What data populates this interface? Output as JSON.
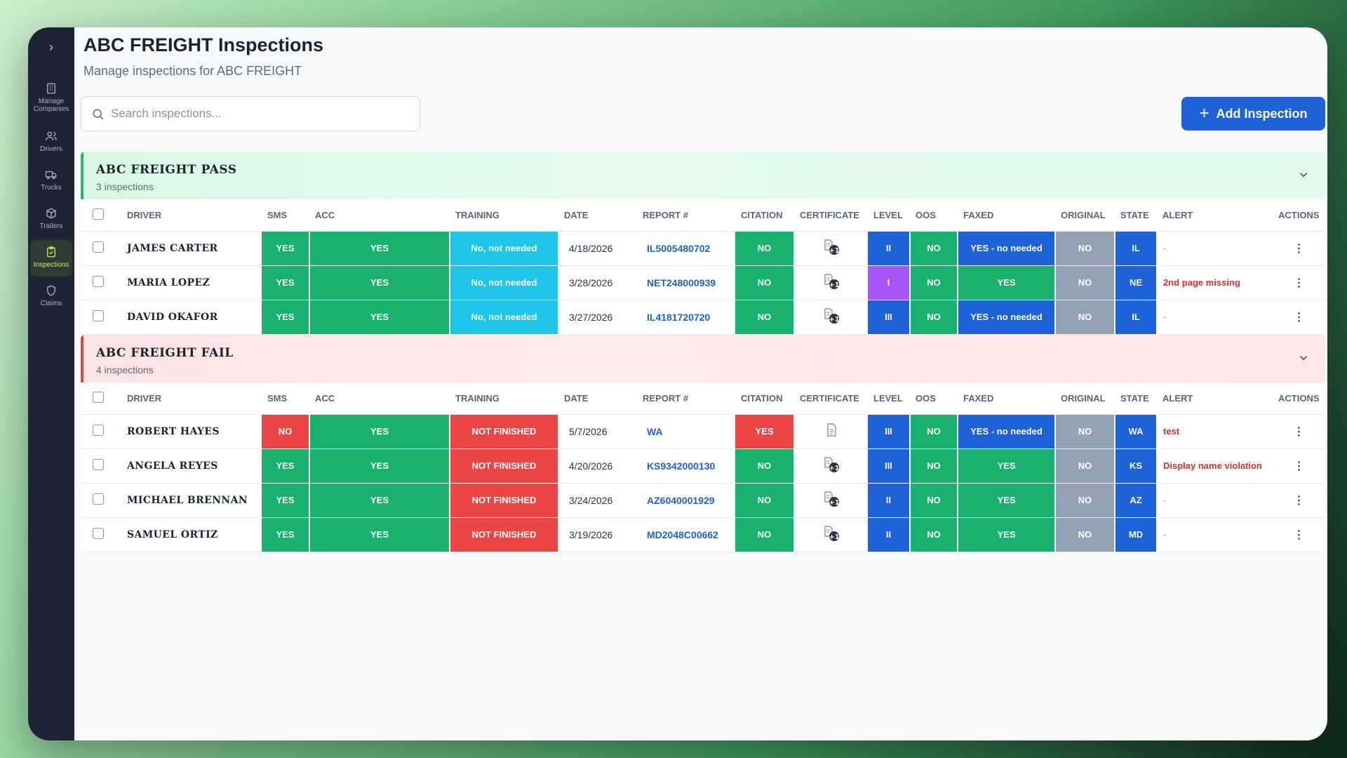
{
  "sidebar": {
    "items": [
      {
        "label": "Manage Companies",
        "icon": "building-icon"
      },
      {
        "label": "Drivers",
        "icon": "users-icon"
      },
      {
        "label": "Trucks",
        "icon": "truck-icon"
      },
      {
        "label": "Trailers",
        "icon": "box-icon"
      },
      {
        "label": "Inspections",
        "icon": "clipboard-icon",
        "active": true
      },
      {
        "label": "Claims",
        "icon": "shield-icon"
      }
    ]
  },
  "header": {
    "title": "ABC FREIGHT Inspections",
    "subtitle": "Manage inspections for ABC FREIGHT"
  },
  "search": {
    "placeholder": "Search inspections..."
  },
  "add_button": {
    "label": "Add Inspection"
  },
  "columns": [
    "DRIVER",
    "SMS",
    "ACC",
    "TRAINING",
    "DATE",
    "REPORT #",
    "CITATION",
    "CERTIFICATE",
    "LEVEL",
    "OOS",
    "FAXED",
    "ORIGINAL",
    "STATE",
    "ALERT",
    "ACTIONS"
  ],
  "groups": [
    {
      "name": "ABC FREIGHT PASS",
      "count": "3 inspections",
      "status": "pass",
      "rows": [
        {
          "driver": "JAMES CARTER",
          "sms": "YES",
          "acc": "YES",
          "training": "No, not needed",
          "date": "4/18/2026",
          "report": "IL5005480702",
          "citation": "NO",
          "certificate": "multi",
          "level": "II",
          "oos": "NO",
          "faxed": "YES - no needed",
          "original": "NO",
          "state": "IL",
          "alert": "-"
        },
        {
          "driver": "MARIA LOPEZ",
          "sms": "YES",
          "acc": "YES",
          "training": "No, not needed",
          "date": "3/28/2026",
          "report": "NET248000939",
          "citation": "NO",
          "certificate": "multi",
          "level": "I",
          "oos": "NO",
          "faxed": "YES",
          "original": "NO",
          "state": "NE",
          "alert": "2nd page missing"
        },
        {
          "driver": "DAVID OKAFOR",
          "sms": "YES",
          "acc": "YES",
          "training": "No, not needed",
          "date": "3/27/2026",
          "report": "IL4181720720",
          "citation": "NO",
          "certificate": "multi",
          "level": "III",
          "oos": "NO",
          "faxed": "YES - no needed",
          "original": "NO",
          "state": "IL",
          "alert": "-"
        }
      ]
    },
    {
      "name": "ABC FREIGHT FAIL",
      "count": "4 inspections",
      "status": "fail",
      "rows": [
        {
          "driver": "ROBERT HAYES",
          "sms": "NO",
          "acc": "YES",
          "training": "NOT FINISHED",
          "date": "5/7/2026",
          "report": "WA",
          "citation": "YES",
          "certificate": "single",
          "level": "III",
          "oos": "NO",
          "faxed": "YES - no needed",
          "original": "NO",
          "state": "WA",
          "alert": "test"
        },
        {
          "driver": "ANGELA REYES",
          "sms": "YES",
          "acc": "YES",
          "training": "NOT FINISHED",
          "date": "4/20/2026",
          "report": "KS9342000130",
          "citation": "NO",
          "certificate": "multi",
          "level": "III",
          "oos": "NO",
          "faxed": "YES",
          "original": "NO",
          "state": "KS",
          "alert": "Display name violation"
        },
        {
          "driver": "MICHAEL BRENNAN",
          "sms": "YES",
          "acc": "YES",
          "training": "NOT FINISHED",
          "date": "3/24/2026",
          "report": "AZ6040001929",
          "citation": "NO",
          "certificate": "multi",
          "level": "II",
          "oos": "NO",
          "faxed": "YES",
          "original": "NO",
          "state": "AZ",
          "alert": "-"
        },
        {
          "driver": "SAMUEL ORTIZ",
          "sms": "YES",
          "acc": "YES",
          "training": "NOT FINISHED",
          "date": "3/19/2026",
          "report": "MD2048C00662",
          "citation": "NO",
          "certificate": "multi",
          "level": "II",
          "oos": "NO",
          "faxed": "YES",
          "original": "NO",
          "state": "MD",
          "alert": "-"
        }
      ]
    }
  ],
  "colors": {
    "green": "#18b26e",
    "red": "#ec4545",
    "cyan": "#1fc6ea",
    "blue": "#1e62d8",
    "purple": "#a855f7",
    "gray": "#95a2b3"
  }
}
